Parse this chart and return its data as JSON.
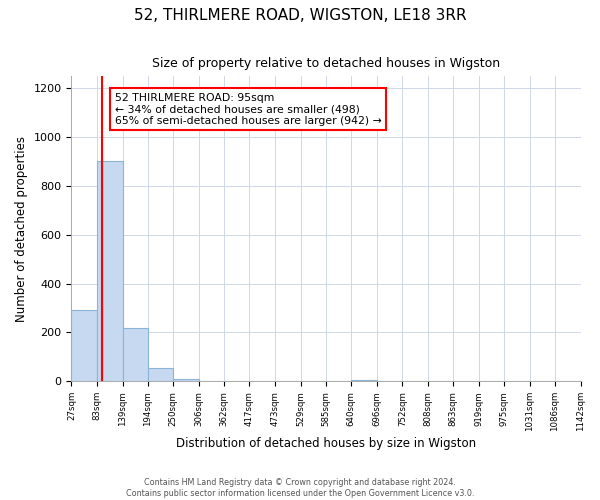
{
  "title": "52, THIRLMERE ROAD, WIGSTON, LE18 3RR",
  "subtitle": "Size of property relative to detached houses in Wigston",
  "xlabel": "Distribution of detached houses by size in Wigston",
  "ylabel": "Number of detached properties",
  "bin_edges": [
    27,
    83,
    139,
    194,
    250,
    306,
    362,
    417,
    473,
    529,
    585,
    640,
    696,
    752,
    808,
    863,
    919,
    975,
    1031,
    1086,
    1142
  ],
  "bin_heights": [
    290,
    900,
    220,
    55,
    8,
    0,
    0,
    0,
    0,
    0,
    0,
    5,
    0,
    0,
    0,
    0,
    0,
    0,
    0,
    0
  ],
  "bar_color": "#c6d9f0",
  "bar_edge_color": "#8ab4d8",
  "red_line_x": 95,
  "annotation_line1": "52 THIRLMERE ROAD: 95sqm",
  "annotation_line2": "← 34% of detached houses are smaller (498)",
  "annotation_line3": "65% of semi-detached houses are larger (942) →",
  "ylim": [
    0,
    1250
  ],
  "yticks": [
    0,
    200,
    400,
    600,
    800,
    1000,
    1200
  ],
  "tick_labels": [
    "27sqm",
    "83sqm",
    "139sqm",
    "194sqm",
    "250sqm",
    "306sqm",
    "362sqm",
    "417sqm",
    "473sqm",
    "529sqm",
    "585sqm",
    "640sqm",
    "696sqm",
    "752sqm",
    "808sqm",
    "863sqm",
    "919sqm",
    "975sqm",
    "1031sqm",
    "1086sqm",
    "1142sqm"
  ],
  "footer1": "Contains HM Land Registry data © Crown copyright and database right 2024.",
  "footer2": "Contains public sector information licensed under the Open Government Licence v3.0.",
  "background_color": "#ffffff",
  "grid_color": "#d0d8e8"
}
